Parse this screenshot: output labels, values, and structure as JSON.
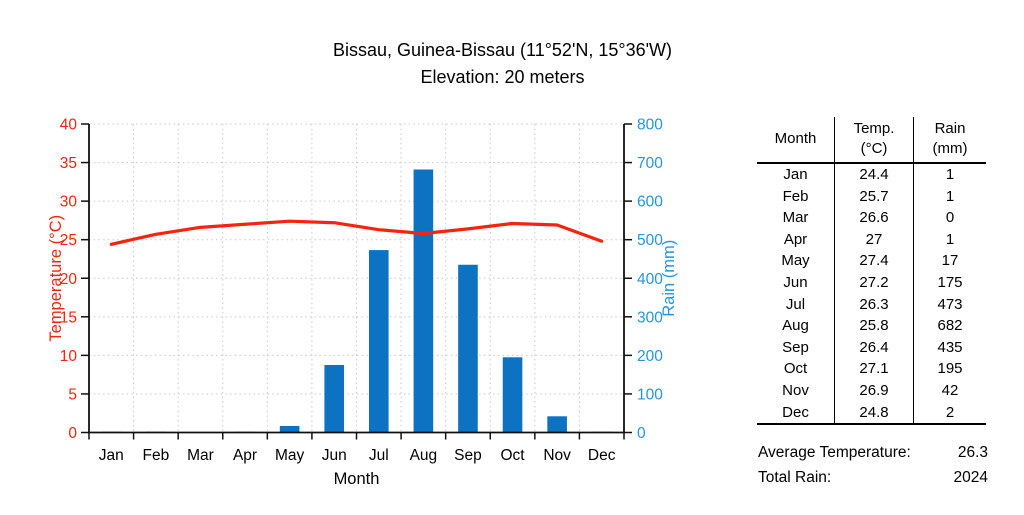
{
  "chart_data": {
    "type": "combo",
    "title_line1": "Bissau, Guinea-Bissau (11°52'N, 15°36'W)",
    "title_line2": "Elevation: 20 meters",
    "categories": [
      "Jan",
      "Feb",
      "Mar",
      "Apr",
      "May",
      "Jun",
      "Jul",
      "Aug",
      "Sep",
      "Oct",
      "Nov",
      "Dec"
    ],
    "xlabel": "Month",
    "grid": "dotted",
    "legend": "none",
    "left_axis": {
      "label": "Temperature (°C)",
      "min": 0,
      "max": 40,
      "step": 5,
      "color": "#f8230e"
    },
    "right_axis": {
      "label": "Rain (mm)",
      "min": 0,
      "max": 800,
      "step": 100,
      "color": "#2496e0"
    },
    "series": [
      {
        "name": "Temp. (°C)",
        "type": "line",
        "axis": "left",
        "color": "#f8230e",
        "values": [
          24.4,
          25.7,
          26.6,
          27,
          27.4,
          27.2,
          26.3,
          25.8,
          26.4,
          27.1,
          26.9,
          24.8
        ]
      },
      {
        "name": "Rain (mm)",
        "type": "bar",
        "axis": "right",
        "color": "#0c72c1",
        "values": [
          1,
          1,
          0,
          1,
          17,
          175,
          473,
          682,
          435,
          195,
          42,
          2
        ]
      }
    ]
  },
  "table": {
    "headers": [
      {
        "line1": "Month",
        "line2": ""
      },
      {
        "line1": "Temp.",
        "line2": "(°C)"
      },
      {
        "line1": "Rain",
        "line2": "(mm)"
      }
    ],
    "rows": [
      [
        "Jan",
        "24.4",
        "1"
      ],
      [
        "Feb",
        "25.7",
        "1"
      ],
      [
        "Mar",
        "26.6",
        "0"
      ],
      [
        "Apr",
        "27",
        "1"
      ],
      [
        "May",
        "27.4",
        "17"
      ],
      [
        "Jun",
        "27.2",
        "175"
      ],
      [
        "Jul",
        "26.3",
        "473"
      ],
      [
        "Aug",
        "25.8",
        "682"
      ],
      [
        "Sep",
        "26.4",
        "435"
      ],
      [
        "Oct",
        "27.1",
        "195"
      ],
      [
        "Nov",
        "26.9",
        "42"
      ],
      [
        "Dec",
        "24.8",
        "2"
      ]
    ]
  },
  "summary": {
    "avg_temp_label": "Average Temperature:",
    "avg_temp_value": "26.3",
    "total_rain_label": "Total Rain:",
    "total_rain_value": "2024"
  }
}
